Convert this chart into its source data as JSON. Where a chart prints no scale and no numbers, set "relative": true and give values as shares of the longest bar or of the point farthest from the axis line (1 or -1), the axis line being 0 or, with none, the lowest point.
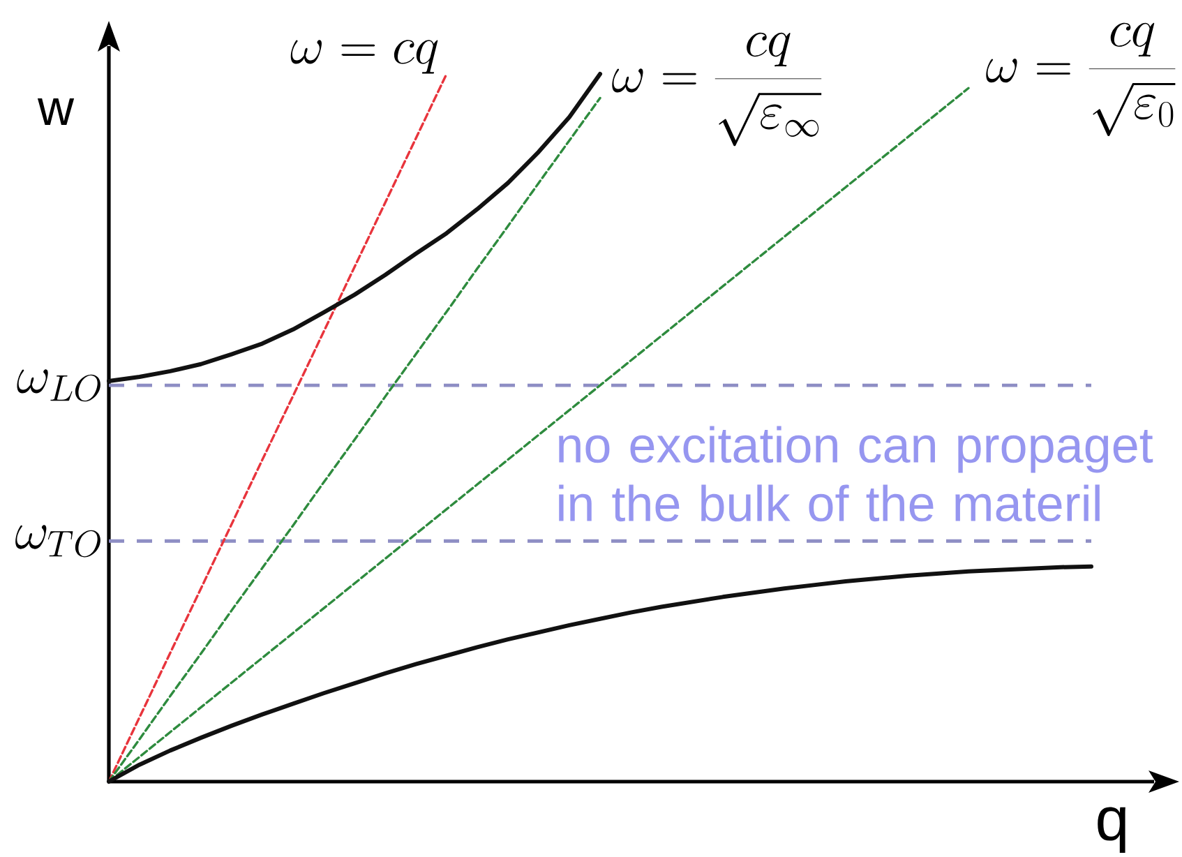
{
  "chart_data": {
    "type": "line",
    "relative": true,
    "xlabel": "q",
    "ylabel": "w",
    "categories": [
      null,
      null,
      null,
      null,
      null,
      null,
      null,
      null,
      null,
      null,
      null,
      null,
      null,
      null,
      null,
      null,
      null,
      null,
      null,
      null,
      null,
      null,
      null,
      null,
      null,
      null,
      null,
      null,
      null,
      null,
      null,
      null,
      null
    ],
    "series": [
      {
        "name": "\\omega=cq",
        "color": "#e8343c",
        "line_style": "dashed",
        "values": [
          0,
          0.091,
          0.182,
          0.273,
          0.364,
          0.455,
          0.545,
          0.636,
          0.727,
          0.818,
          0.909,
          1.0,
          null,
          null,
          null,
          null,
          null,
          null,
          null,
          null,
          null,
          null,
          null,
          null,
          null,
          null,
          null,
          null,
          null,
          null,
          null,
          null,
          null
        ]
      },
      {
        "name": "\\omega=\\frac{cq}{\\sqrt{\\varepsilon_\\infty}}",
        "color": "#2e8b3e",
        "line_style": "dashed",
        "values": [
          0,
          0.06,
          0.121,
          0.181,
          0.242,
          0.302,
          0.362,
          0.423,
          0.483,
          0.544,
          0.604,
          0.664,
          0.725,
          0.785,
          0.846,
          0.906,
          0.966,
          null,
          null,
          null,
          null,
          null,
          null,
          null,
          null,
          null,
          null,
          null,
          null,
          null,
          null,
          null,
          null
        ]
      },
      {
        "name": "\\omega=\\frac{cq}{\\sqrt{\\varepsilon_0}}",
        "color": "#2e8b3e",
        "line_style": "dashed",
        "values": [
          0,
          0.035,
          0.07,
          0.105,
          0.14,
          0.175,
          0.21,
          0.245,
          0.28,
          0.315,
          0.35,
          0.385,
          0.42,
          0.455,
          0.49,
          0.525,
          0.56,
          0.595,
          0.63,
          0.665,
          0.7,
          0.735,
          0.77,
          0.805,
          0.84,
          0.875,
          0.91,
          0.945,
          0.98,
          null,
          null,
          null,
          null
        ]
      },
      {
        "color": "#111111",
        "line_style": "solid",
        "values": [
          0.566,
          0.572,
          0.58,
          0.59,
          0.604,
          0.619,
          0.639,
          0.663,
          0.688,
          0.716,
          0.746,
          0.775,
          0.809,
          0.846,
          0.89,
          0.939,
          1.0,
          null,
          null,
          null,
          null,
          null,
          null,
          null,
          null,
          null,
          null,
          null,
          null,
          null,
          null,
          null,
          null
        ]
      },
      {
        "color": "#111111",
        "line_style": "solid",
        "values": [
          0,
          0.024,
          0.044,
          0.062,
          0.079,
          0.095,
          0.11,
          0.125,
          0.139,
          0.153,
          0.166,
          0.178,
          0.19,
          0.201,
          0.211,
          0.221,
          0.23,
          0.239,
          0.247,
          0.254,
          0.261,
          0.267,
          0.273,
          0.278,
          0.283,
          0.287,
          0.291,
          0.294,
          0.297,
          0.299,
          0.301,
          0.303,
          0.304
        ]
      }
    ],
    "ref_lines": [
      {
        "axis": "y",
        "value": 0.56,
        "label": "\\omega_{LO}",
        "color": "#8e8ec4",
        "line_style": "dashed"
      },
      {
        "axis": "y",
        "value": 0.34,
        "label": "\\omega_{TO}",
        "color": "#8e8ec4",
        "line_style": "dashed"
      }
    ],
    "annotations": [
      "no excitation can propaget in the bulk of the materil"
    ]
  }
}
